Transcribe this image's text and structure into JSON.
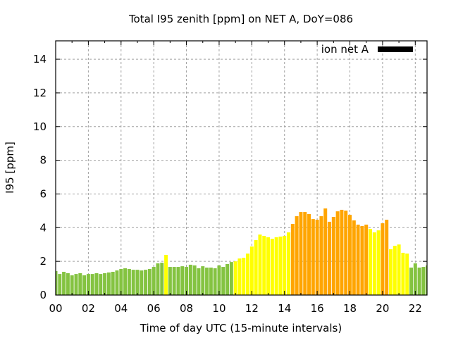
{
  "chart_data": {
    "type": "bar",
    "title": "Total I95 zenith [ppm] on NET A, DoY=086",
    "xlabel": "Time of day UTC (15-minute intervals)",
    "ylabel": "I95 [ppm]",
    "xlim": [
      0,
      22.72
    ],
    "ylim": [
      0,
      15.09
    ],
    "grid": true,
    "x_ticks": [
      0,
      2,
      4,
      6,
      8,
      10,
      12,
      14,
      16,
      18,
      20,
      22
    ],
    "x_tick_labels": [
      "00",
      "02",
      "04",
      "06",
      "08",
      "10",
      "12",
      "14",
      "16",
      "18",
      "20",
      "22"
    ],
    "x_minor_ticks": [
      1,
      3,
      5,
      7,
      9,
      11,
      13,
      15,
      17,
      19,
      21
    ],
    "y_ticks": [
      0,
      2,
      4,
      6,
      8,
      10,
      12,
      14
    ],
    "y_tick_labels": [
      "0",
      "2",
      "4",
      "6",
      "8",
      "10",
      "12",
      "14"
    ],
    "legend": {
      "position": "top-right",
      "entries": [
        {
          "label": "ion net A",
          "color": "#000000"
        }
      ]
    },
    "bar_interval_hours": 0.25,
    "colors": {
      "green": "#84c341",
      "yellow": "#ffff00",
      "orange": "#ffa500"
    },
    "series": [
      {
        "name": "ion net A",
        "x_start": 0,
        "values": [
          1.42,
          1.25,
          1.38,
          1.3,
          1.17,
          1.25,
          1.3,
          1.17,
          1.25,
          1.25,
          1.3,
          1.25,
          1.3,
          1.34,
          1.38,
          1.46,
          1.55,
          1.59,
          1.55,
          1.5,
          1.5,
          1.46,
          1.5,
          1.55,
          1.67,
          1.88,
          1.92,
          2.38,
          1.67,
          1.67,
          1.67,
          1.71,
          1.67,
          1.8,
          1.76,
          1.59,
          1.71,
          1.63,
          1.63,
          1.59,
          1.76,
          1.67,
          1.84,
          1.96,
          2.0,
          2.17,
          2.21,
          2.46,
          2.88,
          3.26,
          3.59,
          3.51,
          3.43,
          3.34,
          3.43,
          3.47,
          3.51,
          3.72,
          4.22,
          4.68,
          4.93,
          4.93,
          4.81,
          4.51,
          4.47,
          4.68,
          5.14,
          4.35,
          4.64,
          4.97,
          5.06,
          5.01,
          4.76,
          4.43,
          4.18,
          4.1,
          4.18,
          3.93,
          3.72,
          3.84,
          4.26,
          4.47,
          2.72,
          2.92,
          3.0,
          2.51,
          2.46,
          1.63,
          1.88,
          1.63,
          1.67,
          1.76
        ],
        "bar_colors": [
          "green",
          "green",
          "green",
          "green",
          "green",
          "green",
          "green",
          "green",
          "green",
          "green",
          "green",
          "green",
          "green",
          "green",
          "green",
          "green",
          "green",
          "green",
          "green",
          "green",
          "green",
          "green",
          "green",
          "green",
          "green",
          "green",
          "green",
          "yellow",
          "green",
          "green",
          "green",
          "green",
          "green",
          "green",
          "green",
          "green",
          "green",
          "green",
          "green",
          "green",
          "green",
          "green",
          "green",
          "green",
          "yellow",
          "yellow",
          "yellow",
          "yellow",
          "yellow",
          "yellow",
          "yellow",
          "yellow",
          "yellow",
          "yellow",
          "yellow",
          "yellow",
          "yellow",
          "yellow",
          "orange",
          "orange",
          "orange",
          "orange",
          "orange",
          "orange",
          "orange",
          "orange",
          "orange",
          "orange",
          "orange",
          "orange",
          "orange",
          "orange",
          "orange",
          "orange",
          "orange",
          "orange",
          "orange",
          "yellow",
          "yellow",
          "yellow",
          "orange",
          "orange",
          "yellow",
          "yellow",
          "yellow",
          "yellow",
          "yellow",
          "green",
          "green",
          "green",
          "green",
          "green"
        ]
      }
    ]
  }
}
